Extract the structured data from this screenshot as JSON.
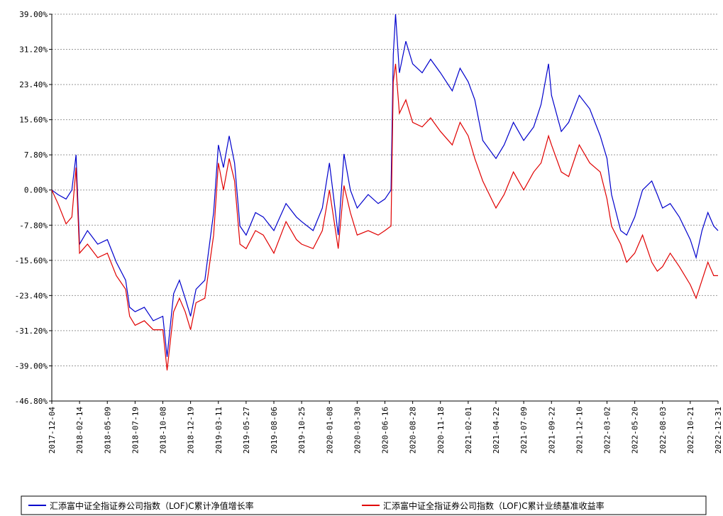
{
  "chart_data": {
    "type": "line",
    "x": [
      "2017-12-04",
      "2017-12-20",
      "2018-01-10",
      "2018-01-25",
      "2018-02-05",
      "2018-02-14",
      "2018-03-10",
      "2018-04-10",
      "2018-05-09",
      "2018-06-01",
      "2018-06-25",
      "2018-07-05",
      "2018-07-19",
      "2018-08-15",
      "2018-09-10",
      "2018-10-08",
      "2018-10-19",
      "2018-11-05",
      "2018-11-20",
      "2018-12-05",
      "2018-12-19",
      "2019-01-04",
      "2019-01-30",
      "2019-02-25",
      "2019-03-11",
      "2019-03-25",
      "2019-04-10",
      "2019-04-25",
      "2019-05-10",
      "2019-05-27",
      "2019-06-20",
      "2019-07-10",
      "2019-08-06",
      "2019-09-10",
      "2019-10-10",
      "2019-10-25",
      "2019-11-25",
      "2019-12-20",
      "2020-01-08",
      "2020-02-03",
      "2020-02-20",
      "2020-03-10",
      "2020-03-30",
      "2020-04-30",
      "2020-05-28",
      "2020-06-16",
      "2020-07-02",
      "2020-07-08",
      "2020-07-14",
      "2020-07-24",
      "2020-08-10",
      "2020-08-28",
      "2020-09-25",
      "2020-10-20",
      "2020-11-18",
      "2020-12-20",
      "2021-01-10",
      "2021-02-01",
      "2021-02-20",
      "2021-03-15",
      "2021-04-22",
      "2021-05-15",
      "2021-06-10",
      "2021-07-09",
      "2021-08-05",
      "2021-08-25",
      "2021-09-14",
      "2021-09-22",
      "2021-10-20",
      "2021-11-10",
      "2021-12-10",
      "2022-01-10",
      "2022-02-10",
      "2022-03-02",
      "2022-03-15",
      "2022-04-10",
      "2022-04-27",
      "2022-05-20",
      "2022-06-10",
      "2022-07-05",
      "2022-07-20",
      "2022-08-03",
      "2022-08-25",
      "2022-09-20",
      "2022-10-21",
      "2022-11-05",
      "2022-11-20",
      "2022-12-05",
      "2022-12-20",
      "2022-12-31"
    ],
    "series": [
      {
        "name": "汇添富中证全指证券公司指数（LOF)C累计净值增长率",
        "color": "#0000cc",
        "values": [
          0,
          -1,
          -2,
          0,
          7.8,
          -12,
          -9,
          -12,
          -11,
          -16,
          -20,
          -26,
          -27,
          -26,
          -29,
          -28,
          -37,
          -23,
          -20,
          -24,
          -28,
          -22,
          -20,
          -5,
          10,
          5,
          12,
          6,
          -8,
          -10,
          -5,
          -6,
          -9,
          -3,
          -6,
          -7,
          -9,
          -4,
          6,
          -10,
          8,
          0,
          -4,
          -1,
          -3,
          -2,
          0,
          30,
          39,
          26,
          33,
          28,
          26,
          29,
          26,
          22,
          27,
          24,
          20,
          11,
          7,
          10,
          15,
          11,
          14,
          19,
          28,
          21,
          13,
          15,
          21,
          18,
          12,
          7,
          -1,
          -9,
          -10,
          -6,
          0,
          2,
          -1,
          -4,
          -3,
          -6,
          -11,
          -15,
          -9,
          -5,
          -8,
          -9
        ]
      },
      {
        "name": "汇添富中证全指证券公司指数（LOF)C累计业绩基准收益率",
        "color": "#e00000",
        "values": [
          0,
          -3,
          -7.5,
          -6,
          5,
          -14,
          -12,
          -15,
          -14,
          -19,
          -22,
          -28,
          -30,
          -29,
          -31,
          -31,
          -40,
          -27,
          -24,
          -27,
          -31,
          -25,
          -24,
          -10,
          6,
          0,
          7,
          2,
          -12,
          -13,
          -9,
          -10,
          -14,
          -7,
          -11,
          -12,
          -13,
          -9,
          0,
          -13,
          1,
          -5,
          -10,
          -9,
          -10,
          -9,
          -8,
          24,
          28,
          17,
          20,
          15,
          14,
          16,
          13,
          10,
          15,
          12,
          7,
          2,
          -4,
          -1,
          4,
          0,
          4,
          6,
          12,
          10,
          4,
          3,
          10,
          6,
          4,
          -2,
          -8,
          -12,
          -16,
          -14,
          -10,
          -16,
          -18,
          -17,
          -14,
          -17,
          -21,
          -24,
          -20,
          -16,
          -19,
          -19
        ]
      }
    ],
    "ylim": [
      -46.8,
      39
    ],
    "yticks": [
      {
        "value": 39,
        "label": "39.00%"
      },
      {
        "value": 31.2,
        "label": "31.20%"
      },
      {
        "value": 23.4,
        "label": "23.40%"
      },
      {
        "value": 15.6,
        "label": "15.60%"
      },
      {
        "value": 7.8,
        "label": "7.80%"
      },
      {
        "value": 0,
        "label": "0.00%"
      },
      {
        "value": -7.8,
        "label": "-7.80%"
      },
      {
        "value": -15.6,
        "label": "-15.60%"
      },
      {
        "value": -23.4,
        "label": "-23.40%"
      },
      {
        "value": -31.2,
        "label": "-31.20%"
      },
      {
        "value": -39,
        "label": "-39.00%"
      },
      {
        "value": -46.8,
        "label": "-46.80%"
      }
    ],
    "xticks": [
      "2017-12-04",
      "2018-02-14",
      "2018-05-09",
      "2018-07-19",
      "2018-10-08",
      "2018-12-19",
      "2019-03-11",
      "2019-05-27",
      "2019-08-06",
      "2019-10-25",
      "2020-01-08",
      "2020-03-30",
      "2020-06-16",
      "2020-08-28",
      "2020-11-18",
      "2021-02-01",
      "2021-04-22",
      "2021-07-09",
      "2021-09-22",
      "2021-12-10",
      "2022-03-02",
      "2022-05-20",
      "2022-08-03",
      "2022-10-21",
      "2022-12-31"
    ],
    "grid": true
  }
}
